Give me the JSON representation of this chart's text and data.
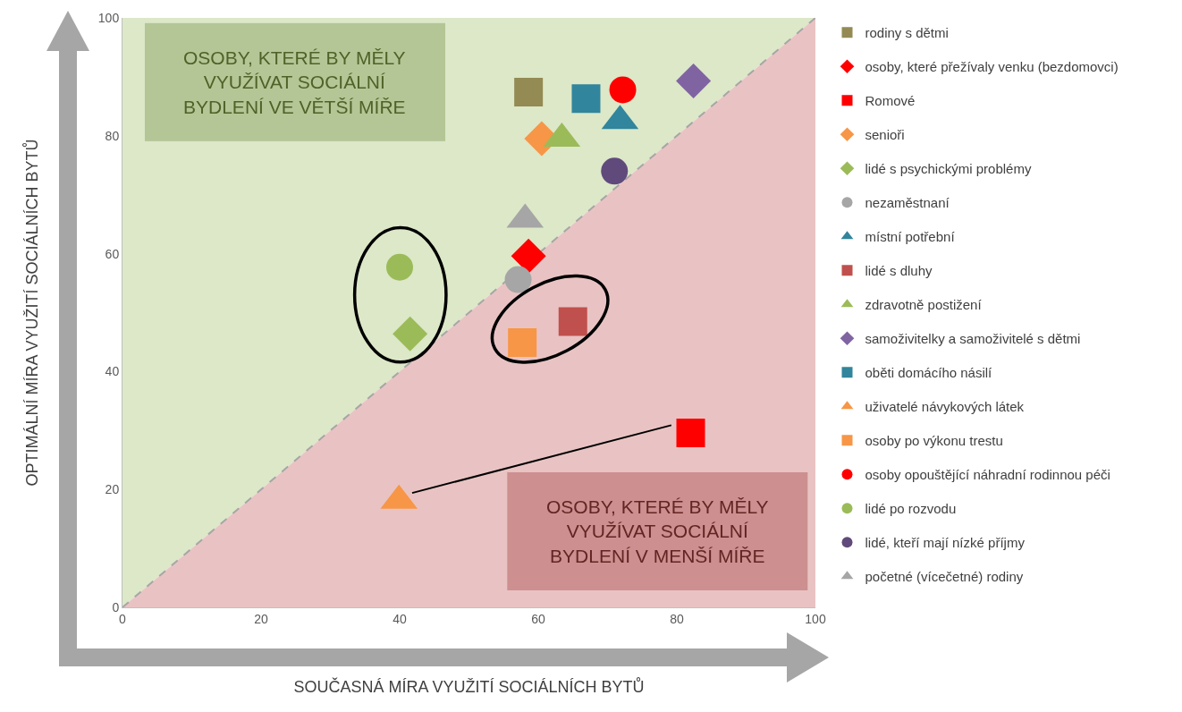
{
  "chart_data": {
    "type": "scatter",
    "xlabel": "SOUČASNÁ MÍRA VYUŽITÍ SOCIÁLNÍCH BYTŮ",
    "ylabel": "OPTIMÁLNÍ MÍRA VYUŽITÍ SOCIÁLNÍCH BYTŮ",
    "annotations": [
      "OSOBY, KTERÉ BY MĚLY VYUŽÍVAT SOCIÁLNÍ BYDLENÍ VE VĚTŠÍ MÍŘE",
      "OSOBY, KTERÉ BY MĚLY VYUŽÍVAT SOCIÁLNÍ BYDLENÍ V MENŠÍ MÍŘE"
    ],
    "xlim": [
      0,
      100
    ],
    "ylim": [
      0,
      100
    ],
    "xticks": [
      0,
      20,
      40,
      60,
      80,
      100
    ],
    "yticks": [
      0,
      20,
      40,
      60,
      80,
      100
    ],
    "grid": false,
    "legend": "right",
    "series": [
      {
        "type": "line",
        "color": "#a6a6a6",
        "line_style": "dashed",
        "marker": "none",
        "x": [
          0,
          100
        ],
        "values": [
          0,
          100
        ]
      },
      {
        "name": "rodiny s dětmi",
        "color": "#948a54",
        "marker": "square",
        "x": [
          58.6
        ],
        "values": [
          87.4
        ]
      },
      {
        "name": "osoby, které přežívaly venku (bezdomovci)",
        "color": "#ff0000",
        "marker": "diamond",
        "x": [
          58.6
        ],
        "values": [
          59.6
        ]
      },
      {
        "name": "Romové",
        "color": "#ff0000",
        "marker": "square",
        "x": [
          82.0
        ],
        "values": [
          29.6
        ]
      },
      {
        "name": "senioři",
        "color": "#f79646",
        "marker": "diamond",
        "x": [
          60.5
        ],
        "values": [
          79.5
        ]
      },
      {
        "name": "lidé s psychickými problémy",
        "color": "#9bbb59",
        "marker": "diamond",
        "x": [
          41.5
        ],
        "values": [
          46.4
        ]
      },
      {
        "name": "nezaměstnaní",
        "color": "#a6a6a6",
        "marker": "circle",
        "x": [
          57.1
        ],
        "values": [
          55.6
        ]
      },
      {
        "name": "místní potřební",
        "color": "#31859c",
        "marker": "triangle",
        "x": [
          71.8
        ],
        "values": [
          82.5
        ]
      },
      {
        "name": "lidé s dluhy",
        "color": "#c0504d",
        "marker": "square",
        "x": [
          65.0
        ],
        "values": [
          48.5
        ]
      },
      {
        "name": "zdravotně postižení",
        "color": "#9bbb59",
        "marker": "triangle",
        "x": [
          63.4
        ],
        "values": [
          79.5
        ]
      },
      {
        "name": "samoživitelky a samoživitelé s dětmi",
        "color": "#8064a2",
        "marker": "diamond",
        "x": [
          82.4
        ],
        "values": [
          89.3
        ]
      },
      {
        "name": "oběti domácího násilí",
        "color": "#31859c",
        "marker": "square",
        "x": [
          66.9
        ],
        "values": [
          86.3
        ]
      },
      {
        "name": "uživatelé návykových látek",
        "color": "#f79646",
        "marker": "triangle",
        "x": [
          39.9
        ],
        "values": [
          18.1
        ]
      },
      {
        "name": "osoby po výkonu trestu",
        "color": "#f79646",
        "marker": "square",
        "x": [
          57.7
        ],
        "values": [
          44.9
        ]
      },
      {
        "name": "osoby opouštějící náhradní rodinnou péči",
        "color": "#ff0000",
        "marker": "circle",
        "x": [
          72.2
        ],
        "values": [
          87.8
        ]
      },
      {
        "name": "lidé po rozvodu",
        "color": "#9bbb59",
        "marker": "circle",
        "x": [
          40.0
        ],
        "values": [
          57.7
        ]
      },
      {
        "name": "lidé, kteří mají nízké příjmy",
        "color": "#604a7b",
        "marker": "circle",
        "x": [
          71.0
        ],
        "values": [
          74.0
        ]
      },
      {
        "name": "početné (vícečetné) rodiny",
        "color": "#a6a6a6",
        "marker": "triangle",
        "x": [
          58.1
        ],
        "values": [
          65.8
        ]
      }
    ]
  }
}
